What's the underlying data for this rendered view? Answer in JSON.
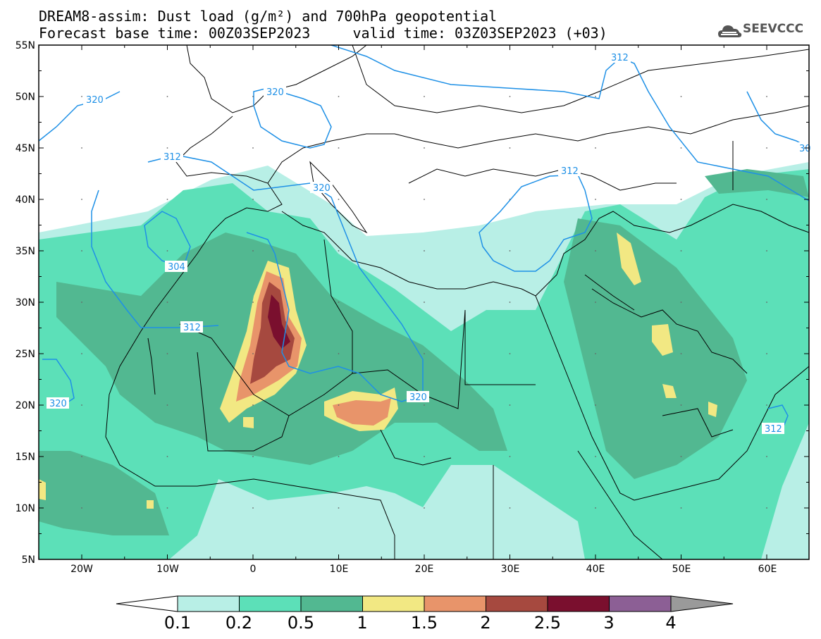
{
  "title": {
    "line1": "DREAM8-assim: Dust load (g/m²) and 700hPa geopotential",
    "line2": "Forecast base time: 00Z03SEP2023     valid time: 03Z03SEP2023 (+03)"
  },
  "logo": {
    "text": "SEEVCCC",
    "icon": "cloud-icon"
  },
  "map": {
    "lat_labels": [
      "55N",
      "50N",
      "45N",
      "40N",
      "35N",
      "30N",
      "25N",
      "20N",
      "15N",
      "10N",
      "5N"
    ],
    "lon_labels": [
      "20W",
      "10W",
      "0",
      "10E",
      "20E",
      "30E",
      "40E",
      "50E",
      "60E"
    ],
    "contour_color": "#1e90e6",
    "contour_labels": [
      "320",
      "320",
      "312",
      "320",
      "304",
      "312",
      "320",
      "312",
      "312",
      "320",
      "312",
      "30"
    ]
  },
  "colorbar": {
    "labels": [
      "0.1",
      "0.2",
      "0.5",
      "1",
      "1.5",
      "2",
      "2.5",
      "3",
      "4"
    ],
    "colors": [
      "#b8efe6",
      "#5ce0b8",
      "#52b891",
      "#f2e883",
      "#e8946a",
      "#a6493f",
      "#7a0f2e",
      "#8c5f95",
      "#9a9a9a"
    ]
  }
}
